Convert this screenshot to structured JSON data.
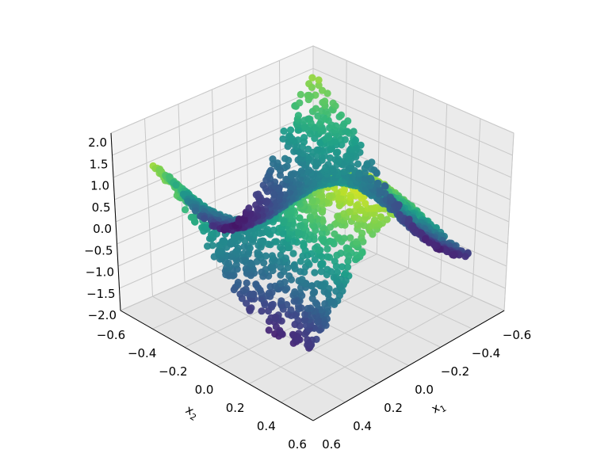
{
  "chart_data": {
    "type": "scatter",
    "projection": "3d",
    "colormap": "viridis",
    "grid": true,
    "xlabel": "x",
    "xlabel_subscript": "1",
    "ylabel": "x",
    "ylabel_subscript": "2",
    "zlabel": "",
    "xlim": [
      -0.6,
      0.6
    ],
    "ylim": [
      -0.6,
      0.6
    ],
    "zlim": [
      -2.0,
      2.0
    ],
    "x_ticks": [
      "−0.6",
      "−0.4",
      "−0.2",
      "0.0",
      "0.2",
      "0.4",
      "0.6"
    ],
    "y_ticks": [
      "−0.6",
      "−0.4",
      "−0.2",
      "0.0",
      "0.2",
      "0.4",
      "0.6"
    ],
    "z_ticks": [
      "2.0",
      "1.5",
      "1.0",
      "0.5",
      "0.0",
      "−0.5",
      "−1.0",
      "−1.5",
      "−2.0"
    ],
    "surface_description": "z ≈ sin(2πx1)·cos(2πx2)-like saddle; peaks about 1.5 at (x1≈0.1, x2≈-0.3) and (x1≈-0.35, x2≈0.05); lowest ≈ -1.2 near (x1≈-0.45, x2≈0.45)",
    "points": [
      [
        0.1,
        -0.3,
        1.55
      ],
      [
        0.05,
        -0.25,
        1.3
      ],
      [
        0.15,
        -0.35,
        1.4
      ],
      [
        -0.35,
        0.05,
        1.35
      ],
      [
        -0.3,
        0.1,
        1.2
      ],
      [
        -0.4,
        0.0,
        1.1
      ],
      [
        0.0,
        0.0,
        0.1
      ],
      [
        0.2,
        0.2,
        -0.3
      ],
      [
        -0.2,
        -0.2,
        0.2
      ],
      [
        0.45,
        0.45,
        -0.9
      ],
      [
        -0.45,
        0.45,
        -1.2
      ],
      [
        0.45,
        -0.45,
        0.5
      ],
      [
        -0.5,
        -0.5,
        0.3
      ],
      [
        0.3,
        0.4,
        -0.8
      ],
      [
        -0.4,
        0.4,
        -1.1
      ],
      [
        0.5,
        0.1,
        0.8
      ],
      [
        0.4,
        -0.2,
        0.9
      ],
      [
        -0.1,
        0.4,
        -0.6
      ],
      [
        0.55,
        0.5,
        0.6
      ],
      [
        -0.55,
        0.1,
        0.4
      ]
    ]
  }
}
